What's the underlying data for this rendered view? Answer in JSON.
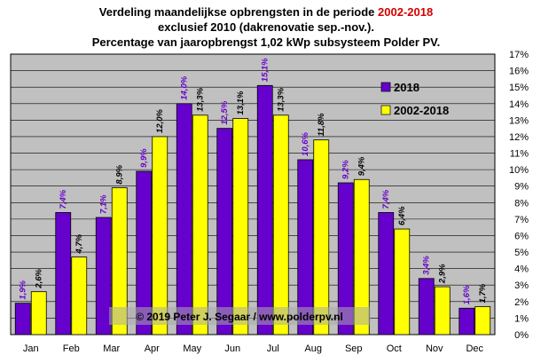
{
  "title": {
    "line1_prefix": "Verdeling maandelijkse opbrengsten in de periode",
    "line1_highlight": "2002-2018",
    "line2": "exclusief 2010 (dakrenovatie sep.-nov.).",
    "line3": "Percentage van jaaropbrengst 1,02 kWp subsysteem Polder PV."
  },
  "copyright": "© 2019 Peter J. Segaar / www.polderpv.nl",
  "colors": {
    "plot_bg": "#c0c0c0",
    "series_2018": "#6600cc",
    "series_avg": "#ffff00",
    "label_2018": "#6600cc",
    "label_avg": "#000000",
    "title_highlight": "#d40000"
  },
  "chart_data": {
    "type": "bar",
    "categories": [
      "Jan",
      "Feb",
      "Mar",
      "Apr",
      "May",
      "Jun",
      "Jul",
      "Aug",
      "Sep",
      "Oct",
      "Nov",
      "Dec"
    ],
    "series": [
      {
        "name": "2018",
        "values": [
          1.9,
          7.4,
          7.1,
          9.9,
          14.0,
          12.5,
          15.1,
          10.6,
          9.2,
          7.4,
          3.4,
          1.6
        ],
        "labels": [
          "1,9%",
          "7,4%",
          "7,1%",
          "9,9%",
          "14,0%",
          "12,5%",
          "15,1%",
          "10,6%",
          "9,2%",
          "7,4%",
          "3,4%",
          "1,6%"
        ]
      },
      {
        "name": "2002-2018",
        "values": [
          2.6,
          4.7,
          8.9,
          12.0,
          13.3,
          13.1,
          13.3,
          11.8,
          9.4,
          6.4,
          2.9,
          1.7
        ],
        "labels": [
          "2,6%",
          "4,7%",
          "8,9%",
          "12,0%",
          "13,3%",
          "13,1%",
          "13,3%",
          "11,8%",
          "9,4%",
          "6,4%",
          "2,9%",
          "1,7%"
        ]
      }
    ],
    "ylim": [
      0,
      17
    ],
    "yticks": [
      "0%",
      "1%",
      "2%",
      "3%",
      "4%",
      "5%",
      "6%",
      "7%",
      "8%",
      "9%",
      "10%",
      "11%",
      "12%",
      "13%",
      "14%",
      "15%",
      "16%",
      "17%"
    ],
    "grid": true,
    "legend_position": "top-right"
  }
}
